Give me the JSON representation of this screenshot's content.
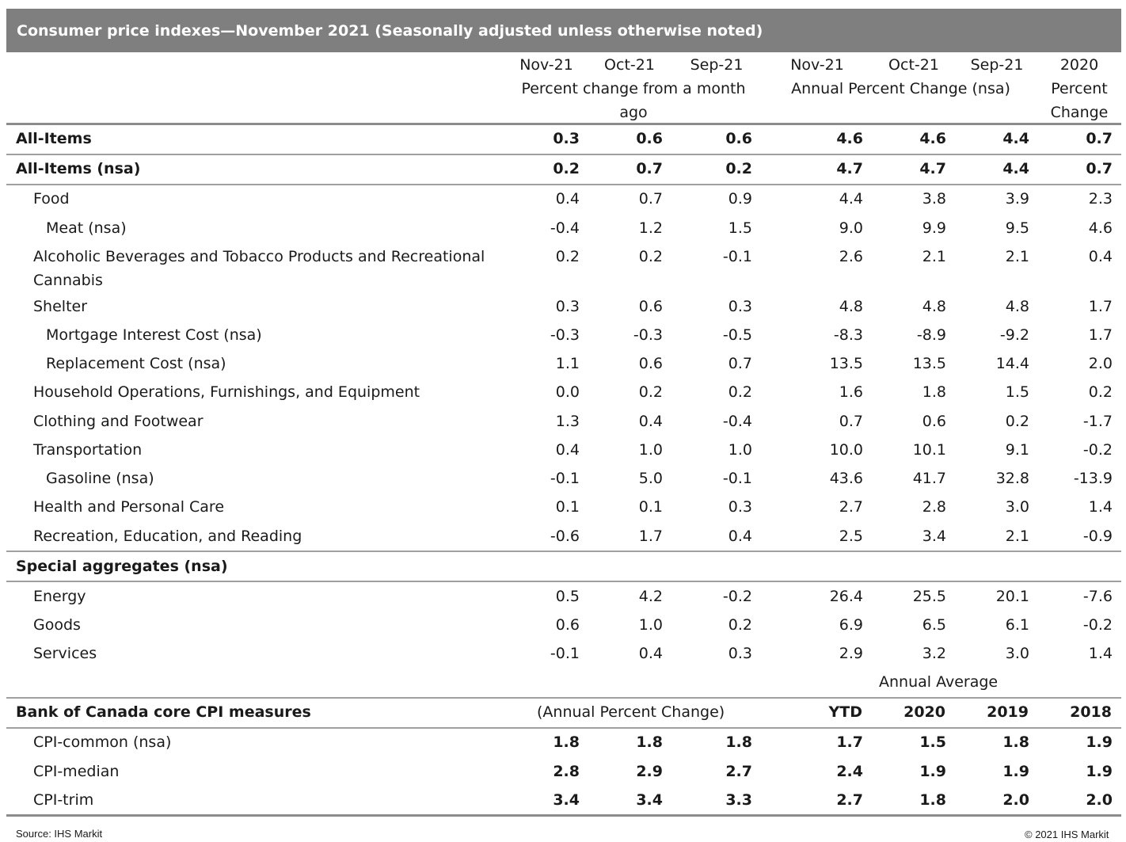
{
  "title": "Consumer price indexes—November 2021 (Seasonally adjusted unless otherwise noted)",
  "header": {
    "months": [
      "Nov-21",
      "Oct-21",
      "Sep-21"
    ],
    "annual_months": [
      "Nov-21",
      "Oct-21",
      "Sep-21"
    ],
    "pct_month_line1": "Percent change from a month",
    "pct_month_line2": "ago",
    "annual_label": "Annual Percent Change (nsa)",
    "last_col_line1": "2020",
    "last_col_line2": "Percent",
    "last_col_line3": "Change"
  },
  "rows": [
    {
      "label": "All-Items",
      "values": [
        "0.3",
        "0.6",
        "0.6",
        "4.6",
        "4.6",
        "4.4",
        "0.7"
      ]
    },
    {
      "label": "All-Items (nsa)",
      "values": [
        "0.2",
        "0.7",
        "0.2",
        "4.7",
        "4.7",
        "4.4",
        "0.7"
      ]
    },
    {
      "label": "Food",
      "values": [
        "0.4",
        "0.7",
        "0.9",
        "4.4",
        "3.8",
        "3.9",
        "2.3"
      ]
    },
    {
      "label": "Meat (nsa)",
      "values": [
        "-0.4",
        "1.2",
        "1.5",
        "9.0",
        "9.9",
        "9.5",
        "4.6"
      ]
    },
    {
      "label": "Alcoholic Beverages and Tobacco Products and Recreational",
      "label2": "Cannabis",
      "values": [
        "0.2",
        "0.2",
        "-0.1",
        "2.6",
        "2.1",
        "2.1",
        "0.4"
      ]
    },
    {
      "label": "Shelter",
      "values": [
        "0.3",
        "0.6",
        "0.3",
        "4.8",
        "4.8",
        "4.8",
        "1.7"
      ]
    },
    {
      "label": "Mortgage Interest Cost (nsa)",
      "values": [
        "-0.3",
        "-0.3",
        "-0.5",
        "-8.3",
        "-8.9",
        "-9.2",
        "1.7"
      ]
    },
    {
      "label": "Replacement Cost (nsa)",
      "values": [
        "1.1",
        "0.6",
        "0.7",
        "13.5",
        "13.5",
        "14.4",
        "2.0"
      ]
    },
    {
      "label": "Household Operations, Furnishings, and Equipment",
      "values": [
        "0.0",
        "0.2",
        "0.2",
        "1.6",
        "1.8",
        "1.5",
        "0.2"
      ]
    },
    {
      "label": "Clothing and Footwear",
      "values": [
        "1.3",
        "0.4",
        "-0.4",
        "0.7",
        "0.6",
        "0.2",
        "-1.7"
      ]
    },
    {
      "label": "Transportation",
      "values": [
        "0.4",
        "1.0",
        "1.0",
        "10.0",
        "10.1",
        "9.1",
        "-0.2"
      ]
    },
    {
      "label": "Gasoline (nsa)",
      "values": [
        "-0.1",
        "5.0",
        "-0.1",
        "43.6",
        "41.7",
        "32.8",
        "-13.9"
      ]
    },
    {
      "label": "Health and Personal Care",
      "values": [
        "0.1",
        "0.1",
        "0.3",
        "2.7",
        "2.8",
        "3.0",
        "1.4"
      ]
    },
    {
      "label": "Recreation, Education, and Reading",
      "values": [
        "-0.6",
        "1.7",
        "0.4",
        "2.5",
        "3.4",
        "2.1",
        "-0.9"
      ]
    }
  ],
  "special": {
    "heading": "Special aggregates (nsa)",
    "rows": [
      {
        "label": "Energy",
        "values": [
          "0.5",
          "4.2",
          "-0.2",
          "26.4",
          "25.5",
          "20.1",
          "-7.6"
        ]
      },
      {
        "label": "Goods",
        "values": [
          "0.6",
          "1.0",
          "0.2",
          "6.9",
          "6.5",
          "6.1",
          "-0.2"
        ]
      },
      {
        "label": "Services",
        "values": [
          "-0.1",
          "0.4",
          "0.3",
          "2.9",
          "3.2",
          "3.0",
          "1.4"
        ]
      }
    ]
  },
  "core": {
    "annual_average": "Annual Average",
    "heading": "Bank of Canada core CPI measures",
    "sub_heading": "(Annual Percent Change)",
    "cols": [
      "YTD",
      "2020",
      "2019",
      "2018"
    ],
    "rows": [
      {
        "label": "CPI-common (nsa)",
        "values": [
          "1.8",
          "1.8",
          "1.8",
          "1.7",
          "1.5",
          "1.8",
          "1.9"
        ]
      },
      {
        "label": "CPI-median",
        "values": [
          "2.8",
          "2.9",
          "2.7",
          "2.4",
          "1.9",
          "1.9",
          "1.9"
        ]
      },
      {
        "label": "CPI-trim",
        "values": [
          "3.4",
          "3.4",
          "3.3",
          "2.7",
          "1.8",
          "2.0",
          "2.0"
        ]
      }
    ]
  },
  "footer": {
    "source": "Source: IHS Markit",
    "copyright": "© 2021 IHS Markit"
  }
}
